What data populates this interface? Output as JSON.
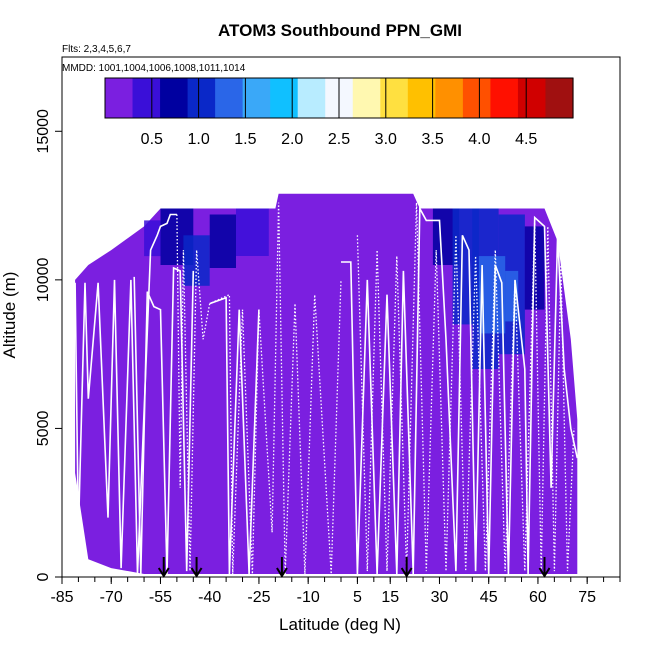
{
  "chart_data": {
    "type": "heatmap",
    "title": "ATOM3 Southbound PPN_GMI",
    "subtitle_flights": "Flts: 2,3,4,5,6,7",
    "subtitle_dates": "MMDD: 1001,1004,1006,1008,1011,1014",
    "xlabel": "Latitude (deg N)",
    "ylabel": "Altitude (m)",
    "xlim": [
      -85,
      85
    ],
    "ylim": [
      0,
      17500
    ],
    "x_ticks": [
      -85,
      -70,
      -55,
      -40,
      -25,
      -10,
      5,
      15,
      30,
      45,
      60,
      75
    ],
    "x_tick_labels": [
      "-85",
      "-70",
      "-55",
      "-40",
      "-25",
      "-10",
      "5",
      "15",
      "30",
      "45",
      "60",
      "75"
    ],
    "y_ticks": [
      0,
      5000,
      10000,
      15000
    ],
    "y_tick_labels": [
      "0",
      "5000",
      "10000",
      "15000"
    ],
    "colorbar": {
      "range": [
        0,
        5
      ],
      "ticks": [
        0.5,
        1.0,
        1.5,
        2.0,
        2.5,
        3.0,
        3.5,
        4.0,
        4.5
      ],
      "tick_labels": [
        "0.5",
        "1.0",
        "1.5",
        "2.0",
        "2.5",
        "3.0",
        "3.5",
        "4.0",
        "4.5"
      ],
      "colors": [
        "#7b1fe0",
        "#3a0fd8",
        "#0000a0",
        "#0a28c8",
        "#2a66e8",
        "#3aa8f8",
        "#10c0ff",
        "#b8ecff",
        "#f4f8ff",
        "#fff8b0",
        "#ffe040",
        "#ffc000",
        "#ff9000",
        "#ff5000",
        "#ff1000",
        "#d00000",
        "#a01010"
      ],
      "boundaries": [
        0.5,
        1.0,
        1.5,
        2.0,
        2.5,
        3.0,
        3.5,
        4.0,
        4.5
      ]
    },
    "background_value": 0.1,
    "envelope": [
      {
        "lat": -81,
        "top": 10000,
        "bottom": 3500
      },
      {
        "lat": -77,
        "top": 10500,
        "bottom": 600
      },
      {
        "lat": -70,
        "top": 11000,
        "bottom": 300
      },
      {
        "lat": -60,
        "top": 11800,
        "bottom": 100
      },
      {
        "lat": -55,
        "top": 12400,
        "bottom": 100
      },
      {
        "lat": -20,
        "top": 12400,
        "bottom": 100
      },
      {
        "lat": -19,
        "top": 12900,
        "bottom": 100
      },
      {
        "lat": 22,
        "top": 12900,
        "bottom": 100
      },
      {
        "lat": 24,
        "top": 12400,
        "bottom": 100
      },
      {
        "lat": 62,
        "top": 12400,
        "bottom": 100
      },
      {
        "lat": 66,
        "top": 11300,
        "bottom": 100
      },
      {
        "lat": 70,
        "top": 8000,
        "bottom": 100
      },
      {
        "lat": 72,
        "top": 5300,
        "bottom": 100
      }
    ],
    "field_patches": [
      {
        "lat": [
          -60,
          -55
        ],
        "alt": [
          10800,
          12000
        ],
        "value": 0.55
      },
      {
        "lat": [
          -55,
          -45
        ],
        "alt": [
          10500,
          12400
        ],
        "value": 0.75
      },
      {
        "lat": [
          -48,
          -40
        ],
        "alt": [
          9800,
          11500
        ],
        "value": 0.95
      },
      {
        "lat": [
          -40,
          -32
        ],
        "alt": [
          10400,
          12200
        ],
        "value": 0.7
      },
      {
        "lat": [
          -32,
          -22
        ],
        "alt": [
          10800,
          12400
        ],
        "value": 0.55
      },
      {
        "lat": [
          28,
          36
        ],
        "alt": [
          10500,
          12400
        ],
        "value": 0.65
      },
      {
        "lat": [
          34,
          42
        ],
        "alt": [
          8500,
          12400
        ],
        "value": 0.9
      },
      {
        "lat": [
          40,
          48
        ],
        "alt": [
          7000,
          12400
        ],
        "value": 1.0
      },
      {
        "lat": [
          48,
          56
        ],
        "alt": [
          7500,
          12200
        ],
        "value": 0.95
      },
      {
        "lat": [
          56,
          62
        ],
        "alt": [
          9000,
          11800
        ],
        "value": 0.7
      },
      {
        "lat": [
          42,
          50
        ],
        "alt": [
          8200,
          10800
        ],
        "value": 1.35
      },
      {
        "lat": [
          50,
          54
        ],
        "alt": [
          8600,
          10300
        ],
        "value": 1.25
      }
    ],
    "flight_tracks": [
      {
        "style": "solid",
        "points": [
          [
            -81,
            9900
          ],
          [
            -80,
            1500
          ],
          [
            -78,
            9900
          ],
          [
            -77,
            6000
          ],
          [
            -74,
            9900
          ],
          [
            -71,
            2000
          ],
          [
            -69,
            10000
          ],
          [
            -67,
            300
          ],
          [
            -64,
            10000
          ],
          [
            -62,
            100
          ],
          [
            -58,
            11000
          ],
          [
            -56,
            11500
          ],
          [
            -55,
            11800
          ],
          [
            -53,
            11900
          ],
          [
            -52,
            12200
          ],
          [
            -50,
            12200
          ]
        ]
      },
      {
        "style": "dotted",
        "points": [
          [
            -50,
            12200
          ],
          [
            -49,
            3000
          ],
          [
            -48,
            11000
          ],
          [
            -46,
            200
          ],
          [
            -44,
            11000
          ],
          [
            -42,
            8000
          ],
          [
            -40,
            9200
          ],
          [
            -34,
            9500
          ],
          [
            -33,
            100
          ],
          [
            -30,
            9000
          ],
          [
            -27,
            100
          ],
          [
            -25,
            9000
          ],
          [
            -21,
            1500
          ],
          [
            -19,
            12600
          ],
          [
            -17,
            100
          ],
          [
            -14,
            9200
          ],
          [
            -11,
            100
          ],
          [
            -8,
            9500
          ],
          [
            -3,
            100
          ],
          [
            0,
            10000
          ]
        ]
      },
      {
        "style": "solid",
        "points": [
          [
            -63,
            10100
          ],
          [
            -61,
            100
          ],
          [
            -59,
            9600
          ],
          [
            -57,
            9100
          ],
          [
            -55,
            9000
          ],
          [
            -53,
            100
          ],
          [
            -51,
            10400
          ],
          [
            -49,
            10300
          ],
          [
            -47,
            200
          ],
          [
            -45,
            10300
          ]
        ]
      },
      {
        "style": "solid",
        "points": [
          [
            -40,
            9200
          ],
          [
            -35,
            9400
          ],
          [
            -34,
            100
          ],
          [
            -31,
            9000
          ],
          [
            -28,
            100
          ],
          [
            -25,
            9000
          ]
        ]
      },
      {
        "style": "solid",
        "points": [
          [
            0,
            10600
          ],
          [
            3,
            10600
          ],
          [
            5,
            100
          ],
          [
            8,
            10000
          ],
          [
            11,
            100
          ],
          [
            14,
            9500
          ],
          [
            17,
            100
          ],
          [
            19,
            10300
          ],
          [
            22,
            100
          ],
          [
            24,
            12400
          ],
          [
            26,
            12000
          ],
          [
            30,
            12000
          ],
          [
            32,
            8000
          ],
          [
            35,
            200
          ],
          [
            37,
            11500
          ],
          [
            39,
            11000
          ],
          [
            41,
            200
          ],
          [
            43,
            10500
          ],
          [
            45,
            100
          ],
          [
            47,
            10500
          ],
          [
            49,
            9900
          ],
          [
            51,
            100
          ],
          [
            53,
            10000
          ],
          [
            56,
            7000
          ],
          [
            57,
            100
          ],
          [
            59,
            12100
          ],
          [
            62,
            11800
          ],
          [
            64,
            3000
          ],
          [
            66,
            11500
          ],
          [
            68,
            7000
          ],
          [
            70,
            5000
          ],
          [
            72,
            4000
          ]
        ]
      },
      {
        "style": "dotted",
        "points": [
          [
            5,
            11500
          ],
          [
            8,
            200
          ],
          [
            11,
            11000
          ],
          [
            14,
            200
          ],
          [
            17,
            10800
          ],
          [
            20,
            200
          ],
          [
            23,
            12600
          ],
          [
            26,
            200
          ],
          [
            29,
            11000
          ],
          [
            32,
            200
          ],
          [
            35,
            11500
          ],
          [
            38,
            200
          ],
          [
            41,
            10800
          ],
          [
            44,
            200
          ],
          [
            47,
            11000
          ],
          [
            50,
            200
          ],
          [
            53,
            10000
          ],
          [
            56,
            200
          ],
          [
            59,
            12000
          ],
          [
            61,
            200
          ],
          [
            63,
            11800
          ],
          [
            65,
            200
          ],
          [
            67,
            10500
          ],
          [
            69,
            200
          ],
          [
            71,
            5000
          ]
        ]
      }
    ],
    "markers": [
      {
        "lat": -54,
        "label": ""
      },
      {
        "lat": -44,
        "label": ""
      },
      {
        "lat": -18,
        "label": ""
      },
      {
        "lat": 20,
        "label": ""
      },
      {
        "lat": 62,
        "label": ""
      }
    ]
  }
}
